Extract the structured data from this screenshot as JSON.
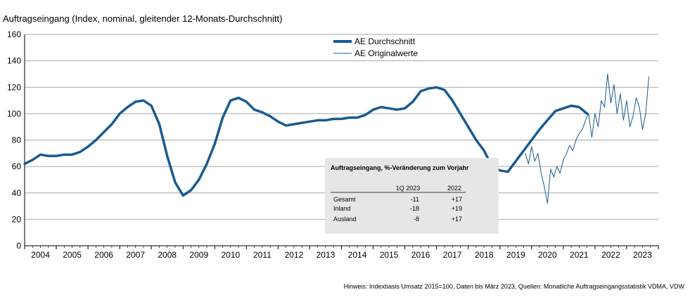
{
  "header": {
    "title": "Auftragseingang (Index, nominal, gleitender 12-Monats-Durchschnitt)"
  },
  "footer": {
    "note": "Hinweis: Indexbasis Umsatz 2015=100, Daten bis März 2023, Quellen: Monatliche Auftragseingangsstatistik VDMA, VDW"
  },
  "colors": {
    "series": "#1a5a8f",
    "grid": "#a6a6a6",
    "inset_bg": "#e6e6e6"
  },
  "chart_data": {
    "type": "line",
    "title": "Auftragseingang (Index, nominal, gleitender 12-Monats-Durchschnitt)",
    "xlabel": "",
    "ylabel": "",
    "ylim": [
      0,
      160
    ],
    "xlim": [
      2003.5,
      2023.5
    ],
    "yticks": [
      "0",
      "20",
      "40",
      "60",
      "80",
      "100",
      "120",
      "140",
      "160"
    ],
    "xticks": [
      "2004",
      "2005",
      "2006",
      "2007",
      "2008",
      "2009",
      "2010",
      "2011",
      "2012",
      "2013",
      "2014",
      "2015",
      "2016",
      "2017",
      "2018",
      "2019",
      "2020",
      "2021",
      "2022",
      "2023"
    ],
    "grid": true,
    "legend_position": "top-center",
    "series": [
      {
        "name": "AE Durchschnitt",
        "x": [
          2003.5,
          2003.75,
          2004.0,
          2004.25,
          2004.5,
          2004.75,
          2005.0,
          2005.25,
          2005.5,
          2005.75,
          2006.0,
          2006.25,
          2006.5,
          2006.75,
          2007.0,
          2007.25,
          2007.5,
          2007.75,
          2008.0,
          2008.25,
          2008.5,
          2008.75,
          2009.0,
          2009.25,
          2009.5,
          2009.75,
          2010.0,
          2010.25,
          2010.5,
          2010.75,
          2011.0,
          2011.25,
          2011.5,
          2011.75,
          2012.0,
          2012.25,
          2012.5,
          2012.75,
          2013.0,
          2013.25,
          2013.5,
          2013.75,
          2014.0,
          2014.25,
          2014.5,
          2014.75,
          2015.0,
          2015.25,
          2015.5,
          2015.75,
          2016.0,
          2016.25,
          2016.5,
          2016.75,
          2017.0,
          2017.25,
          2017.5,
          2017.75,
          2018.0,
          2018.25,
          2018.5,
          2018.75,
          2019.0,
          2019.25,
          2019.5,
          2019.75,
          2020.0,
          2020.25,
          2020.5,
          2020.75,
          2021.0,
          2021.25,
          2021.5,
          2021.75,
          2022.0,
          2022.25,
          2022.5
        ],
        "values": [
          62,
          65,
          69,
          68,
          68,
          69,
          69,
          71,
          75,
          80,
          86,
          92,
          100,
          105,
          109,
          110,
          106,
          92,
          68,
          48,
          38,
          42,
          50,
          62,
          77,
          97,
          110,
          112,
          109,
          103,
          101,
          98,
          94,
          91,
          92,
          93,
          94,
          95,
          95,
          96,
          96,
          97,
          97,
          99,
          103,
          105,
          104,
          103,
          104,
          109,
          117,
          119,
          120,
          118,
          110,
          100,
          90,
          80,
          72,
          60,
          57,
          56,
          64,
          72,
          80,
          88,
          95,
          102,
          104,
          106,
          105,
          100,
          null,
          null,
          null,
          null,
          null
        ],
        "width": "thick"
      },
      {
        "name": "AE Originalwerte",
        "x": [
          2019.3,
          2019.4,
          2019.5,
          2019.6,
          2019.7,
          2019.8,
          2019.9,
          2020.0,
          2020.1,
          2020.2,
          2020.3,
          2020.4,
          2020.5,
          2020.6,
          2020.7,
          2020.8,
          2020.9,
          2021.0,
          2021.1,
          2021.2,
          2021.3,
          2021.4,
          2021.5,
          2021.6,
          2021.7,
          2021.8,
          2021.9,
          2022.0,
          2022.1,
          2022.2,
          2022.3,
          2022.4,
          2022.5,
          2022.6,
          2022.7,
          2022.8,
          2022.9,
          2023.0,
          2023.1,
          2023.2
        ],
        "values": [
          70,
          62,
          75,
          64,
          70,
          55,
          45,
          32,
          58,
          52,
          60,
          55,
          65,
          70,
          76,
          72,
          80,
          85,
          88,
          95,
          100,
          82,
          100,
          90,
          110,
          105,
          130,
          108,
          122,
          100,
          115,
          95,
          110,
          90,
          98,
          112,
          105,
          88,
          100,
          128
        ],
        "width": "thin"
      }
    ]
  },
  "inset": {
    "title": "Auftragseingang, %-Veränderung zum Vorjahr",
    "columns": [
      "",
      "1Q 2023",
      "2022"
    ],
    "rows": [
      {
        "label": "Gesamt",
        "q1_2023": "-11",
        "y2022": "+17"
      },
      {
        "label": "Inland",
        "q1_2023": "-18",
        "y2022": "+19"
      },
      {
        "label": "Ausland",
        "q1_2023": "-8",
        "y2022": "+17"
      }
    ]
  }
}
